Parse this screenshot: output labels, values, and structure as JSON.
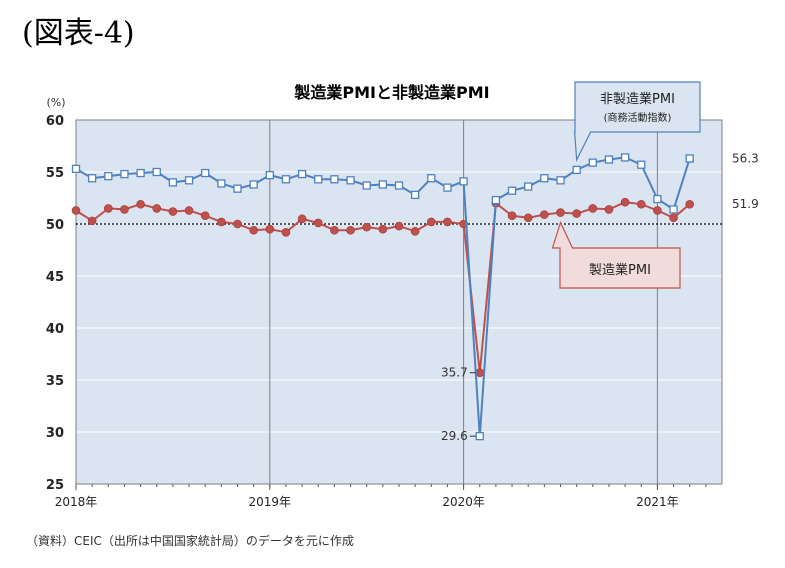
{
  "figure_label": "(図表-4)",
  "source_note": "（資料）CEIC（出所は中国国家統計局）のデータを元に作成",
  "chart_data": {
    "type": "line",
    "title": "製造業PMIと非製造業PMI",
    "ylabel": "(%)",
    "ylim": [
      25,
      60
    ],
    "yticks": [
      25,
      30,
      35,
      40,
      45,
      50,
      55,
      60
    ],
    "xticks": [
      {
        "label": "2018年",
        "month": 0
      },
      {
        "label": "2019年",
        "month": 12
      },
      {
        "label": "2020年",
        "month": 24
      },
      {
        "label": "2021年",
        "month": 36
      }
    ],
    "reference_line": 50,
    "grid": true,
    "colors": {
      "plot_bg": "#dbe5f1",
      "non_mfg": "#4f81bd",
      "mfg": "#c0504d",
      "callout_blue_bg": "#dbe5f1",
      "callout_red_bg": "#f2dcdb"
    },
    "series": [
      {
        "name": "非製造業PMI",
        "sub": "(商務活動指数)",
        "values": [
          55.3,
          54.4,
          54.6,
          54.8,
          54.9,
          55.0,
          54.0,
          54.2,
          54.9,
          53.9,
          53.4,
          53.8,
          54.7,
          54.3,
          54.8,
          54.3,
          54.3,
          54.2,
          53.7,
          53.8,
          53.7,
          52.8,
          54.4,
          53.5,
          54.1,
          29.6,
          52.3,
          53.2,
          53.6,
          54.4,
          54.2,
          55.2,
          55.9,
          56.2,
          56.4,
          55.7,
          52.4,
          51.4,
          56.3
        ]
      },
      {
        "name": "製造業PMI",
        "values": [
          51.3,
          50.3,
          51.5,
          51.4,
          51.9,
          51.5,
          51.2,
          51.3,
          50.8,
          50.2,
          50.0,
          49.4,
          49.5,
          49.2,
          50.5,
          50.1,
          49.4,
          49.4,
          49.7,
          49.5,
          49.8,
          49.3,
          50.2,
          50.2,
          50.0,
          35.7,
          52.0,
          50.8,
          50.6,
          50.9,
          51.1,
          51.0,
          51.5,
          51.4,
          52.1,
          51.9,
          51.3,
          50.6,
          51.9
        ]
      }
    ],
    "annotations": [
      "35.7",
      "29.6",
      "56.3",
      "51.9"
    ]
  }
}
